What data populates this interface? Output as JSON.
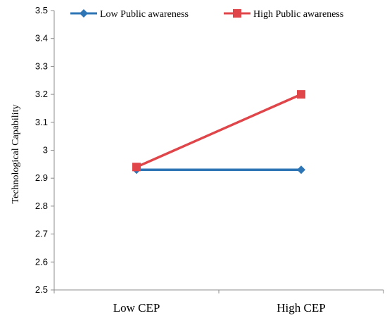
{
  "chart_data": {
    "type": "line",
    "title": "",
    "xlabel": "",
    "ylabel": "Technological  Capability",
    "categories": [
      "Low CEP",
      "High CEP"
    ],
    "ylim": [
      2.5,
      3.5
    ],
    "yticks": [
      "2.5",
      "2.6",
      "2.7",
      "2.8",
      "2.9",
      "3",
      "3.1",
      "3.2",
      "3.3",
      "3.4",
      "3.5"
    ],
    "grid": false,
    "legend_position": "top",
    "series": [
      {
        "name": "Low Public awareness",
        "values": [
          2.93,
          2.93
        ],
        "color": "#2e75b6",
        "marker": "diamond"
      },
      {
        "name": "High Public awareness",
        "values": [
          2.94,
          3.2
        ],
        "color": "#e0454a",
        "marker": "square"
      }
    ]
  }
}
